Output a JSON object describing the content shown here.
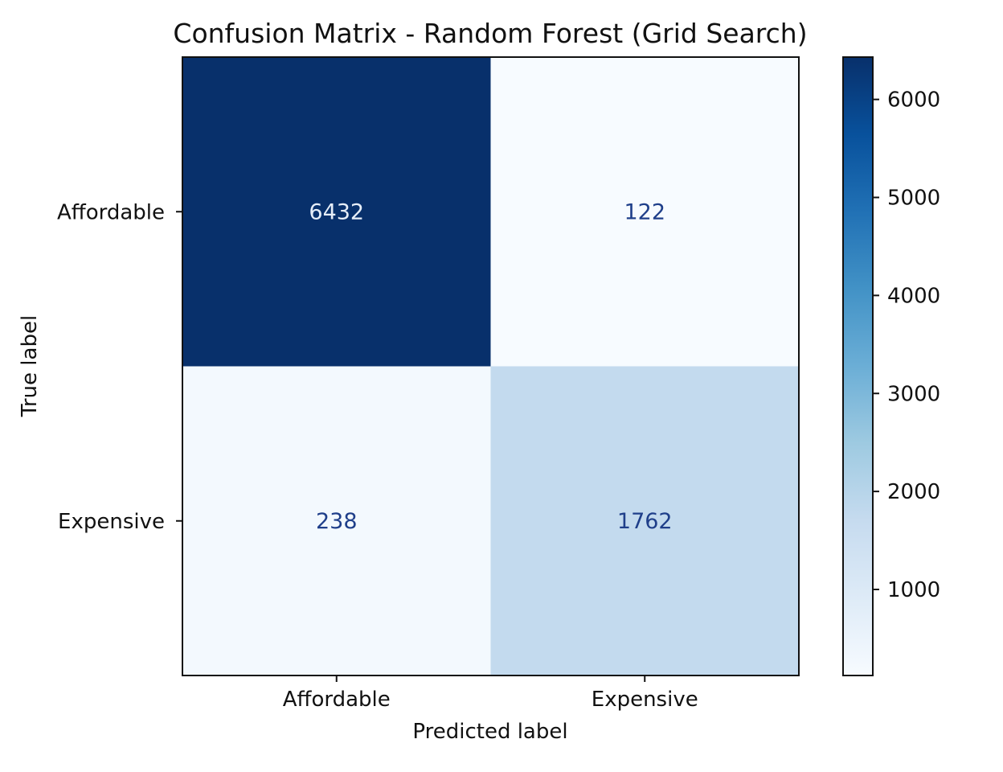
{
  "chart_data": {
    "type": "heatmap",
    "title": "Confusion Matrix - Random Forest (Grid Search)",
    "xlabel": "Predicted label",
    "ylabel": "True label",
    "x_categories": [
      "Affordable",
      "Expensive"
    ],
    "y_categories": [
      "Affordable",
      "Expensive"
    ],
    "values": [
      [
        6432,
        122
      ],
      [
        238,
        1762
      ]
    ],
    "colormap": "Blues",
    "colorbar": {
      "ticks": [
        1000,
        2000,
        3000,
        4000,
        5000,
        6000
      ],
      "range": [
        122,
        6432
      ]
    },
    "text_colors": {
      "on_dark": "#e6eef8",
      "on_light": "#1f3f8a"
    }
  }
}
